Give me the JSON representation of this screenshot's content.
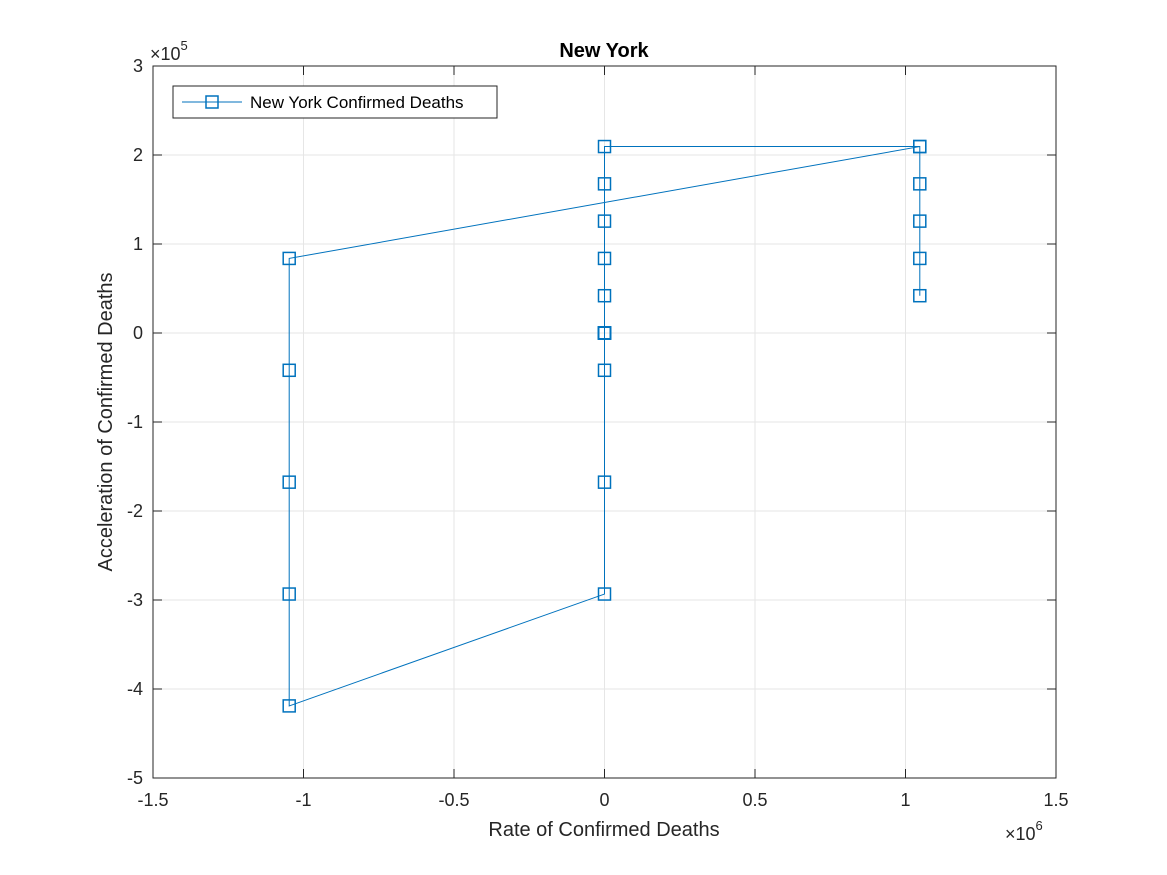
{
  "chart_data": {
    "type": "line",
    "title": "New York",
    "xlabel": "Rate of Confirmed Deaths",
    "ylabel": "Acceleration of Confirmed Deaths",
    "x_exponent_label": "×10",
    "x_exponent_power": "6",
    "y_exponent_label": "×10",
    "y_exponent_power": "5",
    "xlim": [
      -1500000,
      1500000
    ],
    "ylim": [
      -500000,
      300000
    ],
    "x_ticks": [
      -1500000,
      -1000000,
      -500000,
      0,
      500000,
      1000000,
      1500000
    ],
    "x_tick_labels": [
      "-1.5",
      "-1",
      "-0.5",
      "0",
      "0.5",
      "1",
      "1.5"
    ],
    "y_ticks": [
      -500000,
      -400000,
      -300000,
      -200000,
      -100000,
      0,
      100000,
      200000,
      300000
    ],
    "y_tick_labels": [
      "-5",
      "-4",
      "-3",
      "-2",
      "-1",
      "0",
      "1",
      "2",
      "3"
    ],
    "grid": true,
    "legend_position": "top-left",
    "series": [
      {
        "name": "New York Confirmed Deaths",
        "color": "#0072BD",
        "marker": "square",
        "points": [
          [
            0,
            0
          ],
          [
            0,
            0
          ],
          [
            0,
            0
          ],
          [
            0,
            0
          ],
          [
            0,
            0
          ],
          [
            0,
            41900
          ],
          [
            0,
            83800
          ],
          [
            0,
            125700
          ],
          [
            0,
            167600
          ],
          [
            0,
            209500
          ],
          [
            1047500,
            209500
          ],
          [
            1047500,
            167600
          ],
          [
            1047500,
            125700
          ],
          [
            1047500,
            83800
          ],
          [
            1047500,
            41900
          ],
          [
            1047500,
            209500
          ],
          [
            -1047500,
            83800
          ],
          [
            -1047500,
            -41900
          ],
          [
            -1047500,
            -167600
          ],
          [
            -1047500,
            -293300
          ],
          [
            -1047500,
            -419000
          ],
          [
            0,
            -293300
          ],
          [
            0,
            -167600
          ],
          [
            0,
            -41900
          ],
          [
            0,
            0
          ]
        ]
      }
    ]
  }
}
